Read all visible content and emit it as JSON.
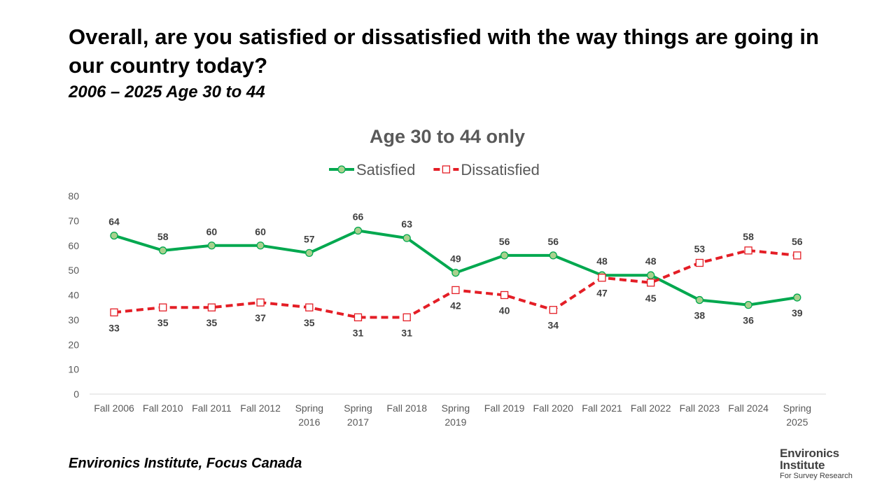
{
  "slide": {
    "title": "Overall, are you satisfied or dissatisfied with the way things are going in our country today?",
    "subtitle": "2006 – 2025  Age 30 to 44",
    "source": "Environics Institute, Focus Canada"
  },
  "logo": {
    "line1": "Environics",
    "line2": "Institute",
    "line3": "For Survey Research"
  },
  "chart_data": {
    "type": "line",
    "title": "Age 30 to 44 only",
    "xlabel": "",
    "ylabel": "",
    "categories": [
      [
        "Fall 2006"
      ],
      [
        "Fall 2010"
      ],
      [
        "Fall 2011"
      ],
      [
        "Fall 2012"
      ],
      [
        "Spring",
        "2016"
      ],
      [
        "Spring",
        "2017"
      ],
      [
        "Fall 2018"
      ],
      [
        "Spring",
        "2019"
      ],
      [
        "Fall 2019"
      ],
      [
        "Fall 2020"
      ],
      [
        "Fall 2021"
      ],
      [
        "Fall 2022"
      ],
      [
        "Fall 2023"
      ],
      [
        "Fall 2024"
      ],
      [
        "Spring",
        "2025"
      ]
    ],
    "ylim": [
      0,
      80
    ],
    "yticks": [
      0,
      10,
      20,
      30,
      40,
      50,
      60,
      70,
      80
    ],
    "grid": false,
    "legend_position": "top-center",
    "series": [
      {
        "name": "Satisfied",
        "color": "#00A84F",
        "marker": "circle",
        "marker_fill": "#A9D18E",
        "line_style": "solid",
        "values": [
          64,
          58,
          60,
          60,
          57,
          66,
          63,
          49,
          56,
          56,
          48,
          48,
          38,
          36,
          39
        ]
      },
      {
        "name": "Dissatisfied",
        "color": "#E41E26",
        "marker": "square",
        "marker_fill": "#FFFFFF",
        "line_style": "dashed",
        "values": [
          33,
          35,
          35,
          37,
          35,
          31,
          31,
          42,
          40,
          34,
          47,
          45,
          53,
          58,
          56
        ]
      }
    ]
  }
}
